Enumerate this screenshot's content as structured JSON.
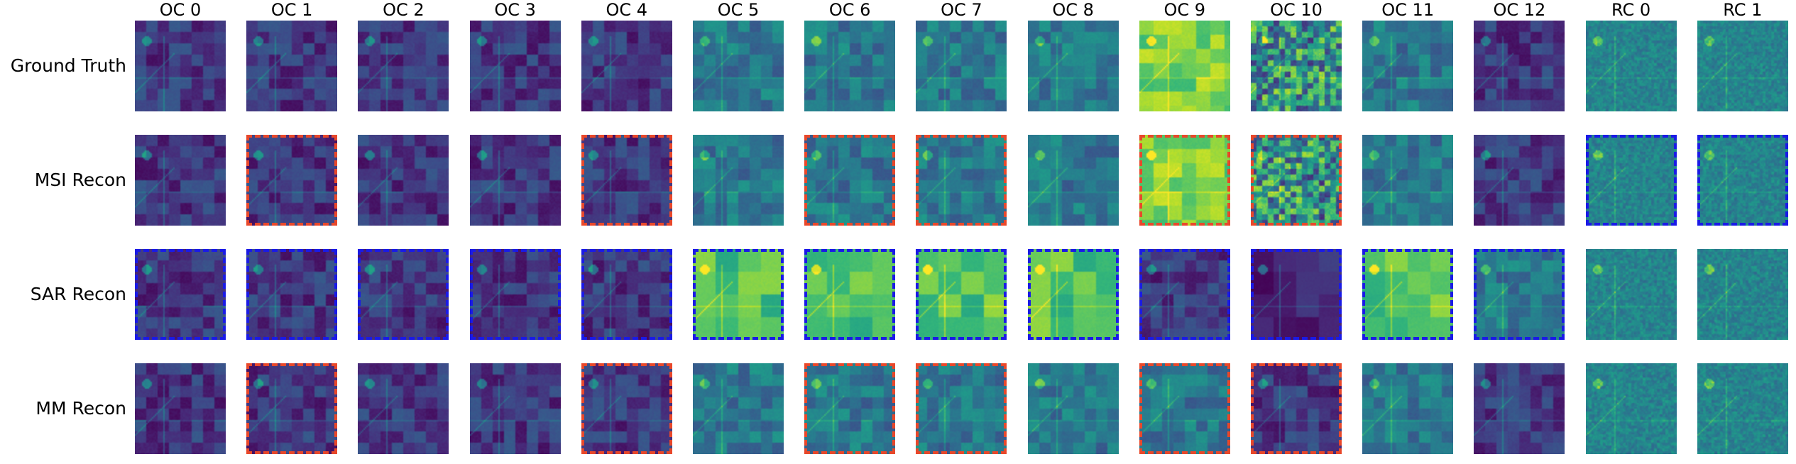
{
  "columns": [
    "OC 0",
    "OC 1",
    "OC 2",
    "OC 3",
    "OC 4",
    "OC 5",
    "OC 6",
    "OC 7",
    "OC 8",
    "OC 9",
    "OC 10",
    "OC 11",
    "OC 12",
    "RC 0",
    "RC 1"
  ],
  "rows": [
    {
      "label": "Ground Truth",
      "tones": [
        "dark",
        "dark",
        "dark",
        "dark",
        "dark",
        "mid",
        "mid",
        "mid",
        "mid",
        "bright",
        "speckle",
        "mid",
        "dark",
        "fine",
        "fine"
      ],
      "frames": [
        "",
        "",
        "",
        "",
        "",
        "",
        "",
        "",
        "",
        "",
        "",
        "",
        "",
        "",
        ""
      ]
    },
    {
      "label": "MSI Recon",
      "tones": [
        "dark",
        "dark",
        "dark",
        "dark",
        "dark",
        "mid",
        "mid",
        "mid",
        "mid",
        "bright",
        "speckle",
        "mid",
        "dark",
        "fine",
        "fine"
      ],
      "frames": [
        "",
        "red",
        "",
        "",
        "red",
        "",
        "red",
        "red",
        "",
        "red",
        "red",
        "",
        "",
        "blue",
        "blue"
      ]
    },
    {
      "label": "SAR Recon",
      "tones": [
        "dark",
        "dark",
        "dark",
        "dark",
        "dark",
        "light",
        "light",
        "light",
        "light",
        "dark",
        "verydark",
        "light",
        "mid",
        "fine",
        "fine"
      ],
      "frames": [
        "blue",
        "blue",
        "blue",
        "blue",
        "blue",
        "blue",
        "blue",
        "blue",
        "blue",
        "blue",
        "blue",
        "blue",
        "blue",
        "",
        ""
      ]
    },
    {
      "label": "MM Recon",
      "tones": [
        "dark",
        "dark",
        "dark",
        "dark",
        "dark",
        "mid",
        "mid",
        "mid",
        "mid",
        "mid",
        "dark",
        "mid",
        "dark",
        "fine",
        "fine"
      ],
      "frames": [
        "",
        "red",
        "",
        "",
        "red",
        "",
        "red",
        "red",
        "",
        "red",
        "red",
        "",
        "",
        "",
        ""
      ]
    }
  ],
  "colors": {
    "highlight_red": "#e8482b",
    "highlight_blue": "#1a1ae6",
    "colormap": "viridis"
  }
}
